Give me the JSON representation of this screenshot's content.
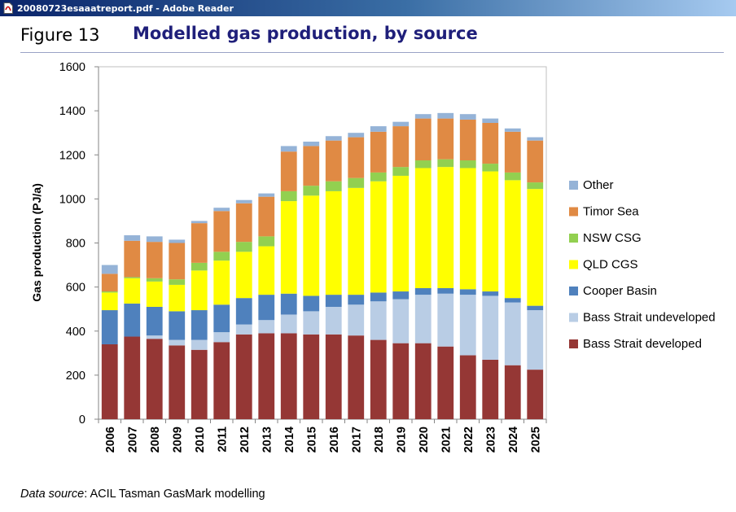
{
  "window": {
    "title": "20080723esaaatreport.pdf - Adobe Reader",
    "icon": "pdf-document-icon"
  },
  "figure": {
    "number": "Figure 13",
    "title": "Modelled gas production, by source"
  },
  "source": {
    "prefix": "Data source",
    "text": ": ACIL Tasman GasMark modelling"
  },
  "colors": {
    "Bass Strait developed": "#953735",
    "Bass Strait undeveloped": "#b9cde5",
    "Cooper Basin": "#4f81bd",
    "QLD CGS": "#ffff00",
    "NSW CSG": "#92d050",
    "Timor Sea": "#e08a44",
    "Other": "#95b3d7",
    "title_text": "#1f1f7a"
  },
  "chart_data": {
    "type": "bar",
    "stacked": true,
    "ylabel": "Gas production (PJ/a)",
    "xlabel": "",
    "ylim": [
      0,
      1600
    ],
    "yticks": [
      0,
      200,
      400,
      600,
      800,
      1000,
      1200,
      1400,
      1600
    ],
    "grid": false,
    "legend_position": "right",
    "categories": [
      "2006",
      "2007",
      "2008",
      "2009",
      "2010",
      "2011",
      "2012",
      "2013",
      "2014",
      "2015",
      "2016",
      "2017",
      "2018",
      "2019",
      "2020",
      "2021",
      "2022",
      "2023",
      "2024",
      "2025"
    ],
    "series": [
      {
        "name": "Bass Strait developed",
        "values": [
          340,
          375,
          365,
          335,
          315,
          350,
          385,
          390,
          390,
          385,
          385,
          380,
          360,
          345,
          345,
          330,
          290,
          270,
          245,
          225
        ]
      },
      {
        "name": "Bass Strait undeveloped",
        "values": [
          0,
          0,
          15,
          25,
          45,
          45,
          45,
          60,
          85,
          105,
          125,
          140,
          175,
          200,
          220,
          240,
          275,
          290,
          285,
          270
        ]
      },
      {
        "name": "Cooper Basin",
        "values": [
          155,
          150,
          130,
          130,
          135,
          125,
          120,
          115,
          95,
          70,
          55,
          45,
          40,
          35,
          30,
          25,
          25,
          20,
          20,
          20
        ]
      },
      {
        "name": "QLD CGS",
        "values": [
          80,
          115,
          115,
          120,
          180,
          200,
          210,
          220,
          420,
          455,
          470,
          485,
          505,
          525,
          545,
          550,
          550,
          545,
          535,
          530
        ]
      },
      {
        "name": "NSW CSG",
        "values": [
          5,
          5,
          15,
          25,
          35,
          40,
          45,
          45,
          45,
          45,
          45,
          45,
          40,
          40,
          35,
          35,
          35,
          35,
          35,
          30
        ]
      },
      {
        "name": "Timor Sea",
        "values": [
          80,
          165,
          165,
          165,
          180,
          185,
          175,
          180,
          180,
          180,
          185,
          185,
          185,
          185,
          190,
          185,
          185,
          185,
          185,
          190
        ]
      },
      {
        "name": "Other",
        "values": [
          40,
          25,
          25,
          15,
          10,
          15,
          15,
          15,
          25,
          20,
          20,
          20,
          25,
          20,
          20,
          25,
          25,
          20,
          15,
          15
        ]
      }
    ]
  }
}
